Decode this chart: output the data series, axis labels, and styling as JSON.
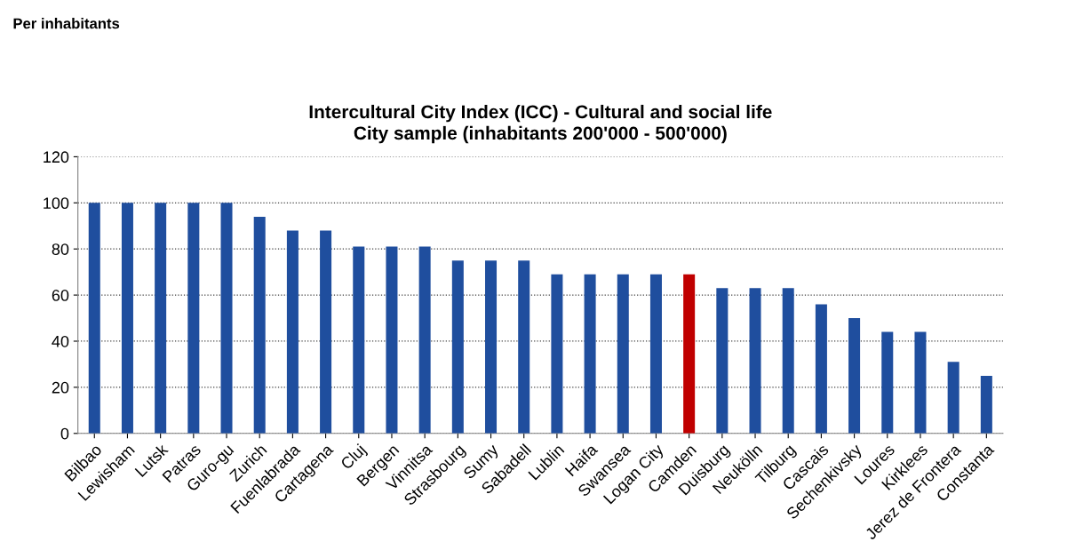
{
  "chart_data": {
    "type": "bar",
    "title": "Intercultural City Index (ICC) - Cultural and social life\nCity sample (inhabitants 200'000 - 500'000)",
    "annotations": [
      "Per inhabitants"
    ],
    "categories": [
      "Bilbao",
      "Lewisham",
      "Lutsk",
      "Patras",
      "Guro-gu",
      "Zurich",
      "Fuenlabrada",
      "Cartagena",
      "Cluj",
      "Bergen",
      "Vinnitsa",
      "Strasbourg",
      "Sumy",
      "Sabadell",
      "Lublin",
      "Haifa",
      "Swansea",
      "Logan City",
      "Camden",
      "Duisburg",
      "Neukölln",
      "Tilburg",
      "Cascais",
      "Sechenkivsky",
      "Loures",
      "Kirklees",
      "Jerez de Frontera",
      "Constanta"
    ],
    "values": [
      100,
      100,
      100,
      100,
      100,
      94,
      88,
      88,
      81,
      81,
      81,
      75,
      75,
      75,
      69,
      69,
      69,
      69,
      69,
      63,
      63,
      63,
      56,
      50,
      44,
      44,
      31,
      25
    ],
    "colors": [
      "#1f4e9e",
      "#1f4e9e",
      "#1f4e9e",
      "#1f4e9e",
      "#1f4e9e",
      "#1f4e9e",
      "#1f4e9e",
      "#1f4e9e",
      "#1f4e9e",
      "#1f4e9e",
      "#1f4e9e",
      "#1f4e9e",
      "#1f4e9e",
      "#1f4e9e",
      "#1f4e9e",
      "#1f4e9e",
      "#1f4e9e",
      "#1f4e9e",
      "#c00000",
      "#1f4e9e",
      "#1f4e9e",
      "#1f4e9e",
      "#1f4e9e",
      "#1f4e9e",
      "#1f4e9e",
      "#1f4e9e",
      "#1f4e9e",
      "#1f4e9e"
    ],
    "ylim": [
      0,
      120
    ],
    "yticks": [
      0,
      20,
      40,
      60,
      80,
      100,
      120
    ],
    "grid": "y",
    "legend": false
  }
}
